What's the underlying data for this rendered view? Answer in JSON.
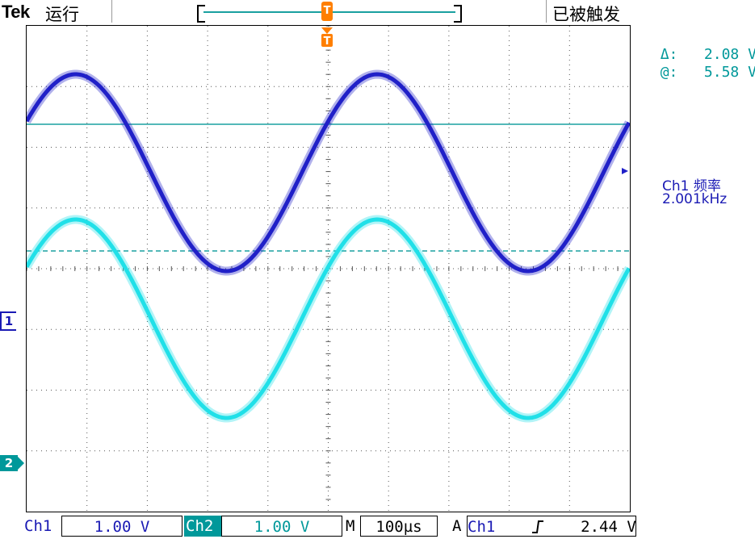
{
  "header": {
    "brand": "Tek",
    "run_state": "运行",
    "trigger_state": "已被触发",
    "trigger_marker": "T",
    "trigger_position_marker": "T"
  },
  "measurements": {
    "delta_label": "Δ:",
    "delta_value": "2.08 V",
    "at_label": "@:",
    "at_value": "5.58 V",
    "freq_label": "Ch1 频率",
    "freq_value": "2.001kHz"
  },
  "markers": {
    "ch1": "1",
    "ch2": "2"
  },
  "status_bar": {
    "ch1_label": "Ch1",
    "ch1_scale": "1.00 V",
    "ch2_label": "Ch2",
    "ch2_scale": "1.00 V",
    "timebase_label": "M",
    "timebase_value": "100µs",
    "trigger_label": "A",
    "trigger_source": "Ch1",
    "trigger_slope": "Ʃ",
    "trigger_level": "2.44 V"
  },
  "traces": {
    "ch1_color": "#2020c8",
    "ch2_color": "#20e0e8",
    "cursor_color": "#1aa0a0",
    "frequency_cycles": 2,
    "ch1_amplitude_div": 3.0,
    "ch2_amplitude_div": 3.0
  }
}
